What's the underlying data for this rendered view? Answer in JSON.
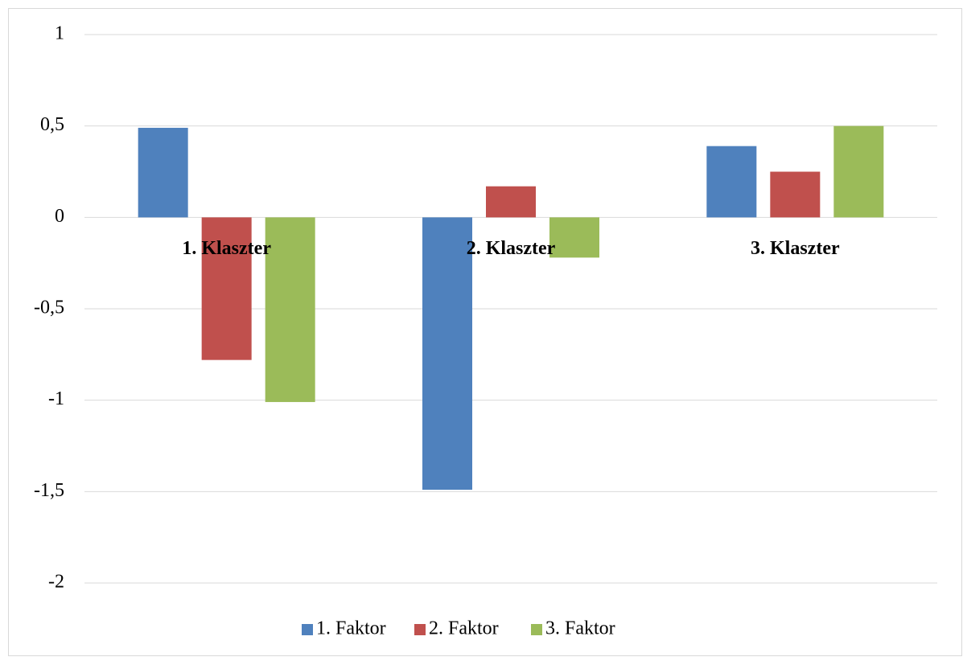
{
  "chart_data": {
    "type": "bar",
    "categories": [
      "1. Klaszter",
      "2. Klaszter",
      "3. Klaszter"
    ],
    "series": [
      {
        "name": "1. Faktor",
        "color": "#4f81bd",
        "values": [
          0.49,
          -1.49,
          0.39
        ]
      },
      {
        "name": "2. Faktor",
        "color": "#c0504d",
        "values": [
          -0.78,
          0.17,
          0.25
        ]
      },
      {
        "name": "3. Faktor",
        "color": "#9bbb59",
        "values": [
          -1.01,
          -0.22,
          0.5
        ]
      }
    ],
    "ylim": [
      -2,
      1
    ],
    "yticks": [
      -2,
      {
        "value": -1.5,
        "label": "-1,5"
      },
      -1,
      {
        "value": -0.5,
        "label": "-0,5"
      },
      0,
      {
        "value": 0.5,
        "label": "0,5"
      },
      1
    ],
    "grid": true,
    "legend": "bottom"
  }
}
